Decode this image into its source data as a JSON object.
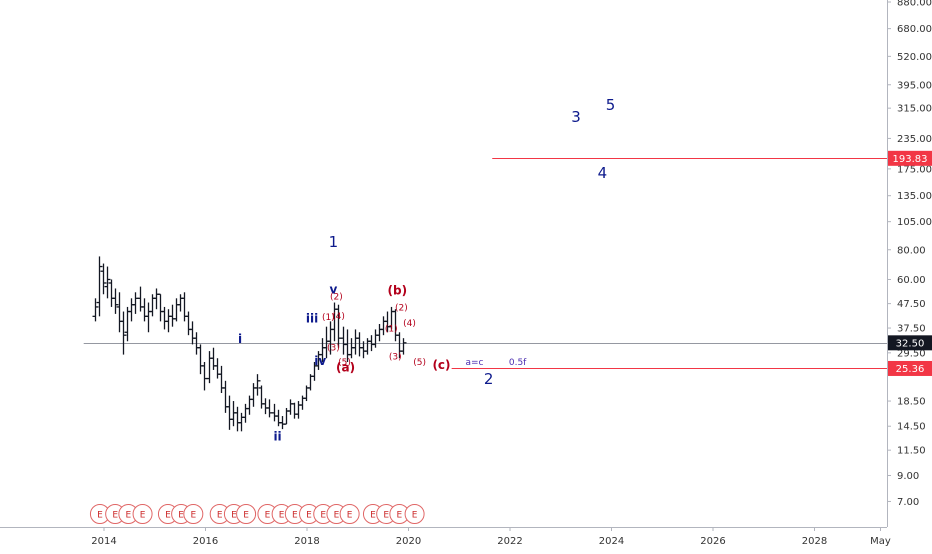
{
  "chart_data": {
    "type": "ohlc",
    "y_scale": "log",
    "ylim": [
      6.2,
      880
    ],
    "xlim": [
      2013.6,
      2029.3
    ],
    "y_tick_labels": [
      "880.00",
      "680.00",
      "520.00",
      "395.00",
      "315.00",
      "235.00",
      "175.00",
      "135.00",
      "105.00",
      "80.00",
      "60.00",
      "47.50",
      "37.50",
      "29.50",
      "25.50",
      "18.50",
      "14.50",
      "11.50",
      "9.00",
      "7.00"
    ],
    "x_tick_labels": [
      {
        "label": "2014",
        "x": 2014
      },
      {
        "label": "2016",
        "x": 2016
      },
      {
        "label": "2018",
        "x": 2018
      },
      {
        "label": "2020",
        "x": 2020
      },
      {
        "label": "2022",
        "x": 2022
      },
      {
        "label": "2024",
        "x": 2024
      },
      {
        "label": "2026",
        "x": 2026
      },
      {
        "label": "2028",
        "x": 2028
      },
      {
        "label": "May",
        "x": 2029.3
      }
    ],
    "price_labels": [
      {
        "text": "193.83",
        "price": 193.83,
        "color": "#f23645",
        "line_from": 2021.65
      },
      {
        "text": "32.50",
        "price": 32.5,
        "color": "#131722",
        "line_from": 2013.6
      },
      {
        "text": "25.36",
        "price": 25.36,
        "color": "#f23645",
        "line_from": 2020.85
      }
    ],
    "bars": [
      {
        "x": 2013.82,
        "h": 50,
        "l": 40,
        "o": 42,
        "c": 46
      },
      {
        "x": 2013.9,
        "h": 75,
        "l": 42,
        "o": 48,
        "c": 68
      },
      {
        "x": 2013.98,
        "h": 70,
        "l": 52,
        "o": 65,
        "c": 58
      },
      {
        "x": 2014.06,
        "h": 68,
        "l": 50,
        "o": 56,
        "c": 60
      },
      {
        "x": 2014.14,
        "h": 60,
        "l": 46,
        "o": 58,
        "c": 50
      },
      {
        "x": 2014.22,
        "h": 55,
        "l": 43,
        "o": 50,
        "c": 47
      },
      {
        "x": 2014.3,
        "h": 53,
        "l": 36,
        "o": 46,
        "c": 40
      },
      {
        "x": 2014.38,
        "h": 44,
        "l": 29,
        "o": 40,
        "c": 35
      },
      {
        "x": 2014.46,
        "h": 46,
        "l": 33,
        "o": 36,
        "c": 44
      },
      {
        "x": 2014.54,
        "h": 50,
        "l": 40,
        "o": 44,
        "c": 47
      },
      {
        "x": 2014.62,
        "h": 53,
        "l": 43,
        "o": 47,
        "c": 50
      },
      {
        "x": 2014.7,
        "h": 56,
        "l": 44,
        "o": 50,
        "c": 46
      },
      {
        "x": 2014.78,
        "h": 50,
        "l": 40,
        "o": 46,
        "c": 42
      },
      {
        "x": 2014.86,
        "h": 48,
        "l": 36,
        "o": 42,
        "c": 44
      },
      {
        "x": 2014.94,
        "h": 52,
        "l": 42,
        "o": 44,
        "c": 50
      },
      {
        "x": 2015.02,
        "h": 55,
        "l": 45,
        "o": 50,
        "c": 52
      },
      {
        "x": 2015.1,
        "h": 52,
        "l": 40,
        "o": 52,
        "c": 44
      },
      {
        "x": 2015.18,
        "h": 46,
        "l": 37,
        "o": 44,
        "c": 40
      },
      {
        "x": 2015.26,
        "h": 45,
        "l": 36,
        "o": 40,
        "c": 42
      },
      {
        "x": 2015.34,
        "h": 47,
        "l": 38,
        "o": 42,
        "c": 41
      },
      {
        "x": 2015.42,
        "h": 50,
        "l": 40,
        "o": 41,
        "c": 47
      },
      {
        "x": 2015.5,
        "h": 52,
        "l": 44,
        "o": 47,
        "c": 50
      },
      {
        "x": 2015.58,
        "h": 53,
        "l": 40,
        "o": 50,
        "c": 42
      },
      {
        "x": 2015.66,
        "h": 44,
        "l": 35,
        "o": 42,
        "c": 37
      },
      {
        "x": 2015.74,
        "h": 40,
        "l": 32,
        "o": 37,
        "c": 34
      },
      {
        "x": 2015.82,
        "h": 36,
        "l": 29,
        "o": 34,
        "c": 31
      },
      {
        "x": 2015.9,
        "h": 32,
        "l": 24,
        "o": 31,
        "c": 26
      },
      {
        "x": 2015.98,
        "h": 27,
        "l": 20.5,
        "o": 26,
        "c": 23
      },
      {
        "x": 2016.06,
        "h": 30,
        "l": 22,
        "o": 23,
        "c": 28
      },
      {
        "x": 2016.14,
        "h": 31,
        "l": 25,
        "o": 28,
        "c": 26
      },
      {
        "x": 2016.22,
        "h": 28,
        "l": 23,
        "o": 26,
        "c": 24
      },
      {
        "x": 2016.3,
        "h": 26,
        "l": 20,
        "o": 24,
        "c": 21
      },
      {
        "x": 2016.38,
        "h": 22.5,
        "l": 16.5,
        "o": 21,
        "c": 17.5
      },
      {
        "x": 2016.46,
        "h": 19.5,
        "l": 14,
        "o": 17.5,
        "c": 15.5
      },
      {
        "x": 2016.54,
        "h": 18.5,
        "l": 14.5,
        "o": 15.5,
        "c": 16.5
      },
      {
        "x": 2016.62,
        "h": 17.5,
        "l": 13.8,
        "o": 16.5,
        "c": 15
      },
      {
        "x": 2016.7,
        "h": 16.5,
        "l": 13.8,
        "o": 15,
        "c": 15.8
      },
      {
        "x": 2016.78,
        "h": 18,
        "l": 15,
        "o": 15.8,
        "c": 17.2
      },
      {
        "x": 2016.86,
        "h": 19.5,
        "l": 16.2,
        "o": 17.2,
        "c": 18.8
      },
      {
        "x": 2016.94,
        "h": 22,
        "l": 17.5,
        "o": 18.8,
        "c": 21
      },
      {
        "x": 2017.02,
        "h": 24,
        "l": 19.5,
        "o": 21,
        "c": 22.5
      },
      {
        "x": 2017.1,
        "h": 21.5,
        "l": 17.2,
        "o": 21,
        "c": 18
      },
      {
        "x": 2017.18,
        "h": 19,
        "l": 16.3,
        "o": 18,
        "c": 17.3
      },
      {
        "x": 2017.26,
        "h": 18.8,
        "l": 15.8,
        "o": 17.3,
        "c": 16.5
      },
      {
        "x": 2017.34,
        "h": 18,
        "l": 15.2,
        "o": 16.5,
        "c": 16
      },
      {
        "x": 2017.42,
        "h": 17,
        "l": 14.5,
        "o": 16,
        "c": 15
      },
      {
        "x": 2017.5,
        "h": 16,
        "l": 14.1,
        "o": 15,
        "c": 14.8
      },
      {
        "x": 2017.58,
        "h": 17.3,
        "l": 14.8,
        "o": 14.8,
        "c": 16.8
      },
      {
        "x": 2017.66,
        "h": 18.8,
        "l": 16.2,
        "o": 16.8,
        "c": 18
      },
      {
        "x": 2017.74,
        "h": 18.2,
        "l": 15.6,
        "o": 18,
        "c": 16.3
      },
      {
        "x": 2017.82,
        "h": 18.5,
        "l": 15.6,
        "o": 16.3,
        "c": 17.8
      },
      {
        "x": 2017.9,
        "h": 19.5,
        "l": 17,
        "o": 17.8,
        "c": 19
      },
      {
        "x": 2017.98,
        "h": 21.5,
        "l": 18.5,
        "o": 19,
        "c": 21
      },
      {
        "x": 2018.06,
        "h": 24,
        "l": 20.5,
        "o": 21,
        "c": 23.5
      },
      {
        "x": 2018.14,
        "h": 27,
        "l": 22.5,
        "o": 23.5,
        "c": 26
      },
      {
        "x": 2018.22,
        "h": 30,
        "l": 25,
        "o": 26,
        "c": 29
      },
      {
        "x": 2018.3,
        "h": 34,
        "l": 27,
        "o": 29,
        "c": 31
      },
      {
        "x": 2018.38,
        "h": 38,
        "l": 28,
        "o": 31,
        "c": 33
      },
      {
        "x": 2018.46,
        "h": 40,
        "l": 29,
        "o": 33,
        "c": 37
      },
      {
        "x": 2018.54,
        "h": 48,
        "l": 33,
        "o": 37,
        "c": 45
      },
      {
        "x": 2018.62,
        "h": 47,
        "l": 31,
        "o": 45,
        "c": 34
      },
      {
        "x": 2018.7,
        "h": 38,
        "l": 29,
        "o": 34,
        "c": 32
      },
      {
        "x": 2018.78,
        "h": 37,
        "l": 27,
        "o": 32,
        "c": 29
      },
      {
        "x": 2018.86,
        "h": 34,
        "l": 28,
        "o": 29,
        "c": 31
      },
      {
        "x": 2018.94,
        "h": 37,
        "l": 29,
        "o": 31,
        "c": 34
      },
      {
        "x": 2019.02,
        "h": 36,
        "l": 28.5,
        "o": 34,
        "c": 31
      },
      {
        "x": 2019.1,
        "h": 33,
        "l": 28,
        "o": 31,
        "c": 30
      },
      {
        "x": 2019.18,
        "h": 34,
        "l": 29,
        "o": 30,
        "c": 33
      },
      {
        "x": 2019.26,
        "h": 35,
        "l": 30,
        "o": 33,
        "c": 32
      },
      {
        "x": 2019.34,
        "h": 37,
        "l": 31,
        "o": 32,
        "c": 35
      },
      {
        "x": 2019.42,
        "h": 39,
        "l": 33,
        "o": 35,
        "c": 37
      },
      {
        "x": 2019.5,
        "h": 42,
        "l": 35,
        "o": 37,
        "c": 40
      },
      {
        "x": 2019.58,
        "h": 44,
        "l": 36,
        "o": 40,
        "c": 38
      },
      {
        "x": 2019.66,
        "h": 46,
        "l": 37,
        "o": 38,
        "c": 44
      },
      {
        "x": 2019.74,
        "h": 45,
        "l": 33,
        "o": 44,
        "c": 35
      },
      {
        "x": 2019.82,
        "h": 36,
        "l": 28,
        "o": 35,
        "c": 30
      },
      {
        "x": 2019.9,
        "h": 34,
        "l": 29,
        "o": 30,
        "c": 32.5
      }
    ],
    "annotations": [
      {
        "text": "1",
        "x": 2018.52,
        "price": 82,
        "style": "major"
      },
      {
        "text": "2",
        "x": 2021.58,
        "price": 21.8,
        "style": "major"
      },
      {
        "text": "3",
        "x": 2023.3,
        "price": 275,
        "style": "major"
      },
      {
        "text": "4",
        "x": 2023.82,
        "price": 160,
        "style": "major"
      },
      {
        "text": "5",
        "x": 2023.98,
        "price": 310,
        "style": "major"
      },
      {
        "text": "i",
        "x": 2016.68,
        "price": 32.5,
        "style": "minor"
      },
      {
        "text": "ii",
        "x": 2017.42,
        "price": 12.6,
        "style": "minor"
      },
      {
        "text": "iii",
        "x": 2018.1,
        "price": 39.5,
        "style": "minor"
      },
      {
        "text": "iv",
        "x": 2018.26,
        "price": 26.2,
        "style": "minor"
      },
      {
        "text": "v",
        "x": 2018.52,
        "price": 52.5,
        "style": "minor"
      },
      {
        "text": "(b)",
        "x": 2019.78,
        "price": 52,
        "style": "red"
      },
      {
        "text": "(a)",
        "x": 2018.76,
        "price": 24.6,
        "style": "red"
      },
      {
        "text": "(c)",
        "x": 2020.65,
        "price": 25.2,
        "style": "red"
      },
      {
        "text": "(2)",
        "x": 2018.58,
        "price": 49.5,
        "style": "red-small"
      },
      {
        "text": "(1)",
        "x": 2018.42,
        "price": 40.5,
        "style": "red-small"
      },
      {
        "text": "(4)",
        "x": 2018.62,
        "price": 41,
        "style": "red-small"
      },
      {
        "text": "(3)",
        "x": 2018.52,
        "price": 30.2,
        "style": "red-small"
      },
      {
        "text": "(5)",
        "x": 2018.74,
        "price": 26.2,
        "style": "red-small"
      },
      {
        "text": "(2)",
        "x": 2019.86,
        "price": 44.5,
        "style": "red-small"
      },
      {
        "text": "(1)",
        "x": 2019.66,
        "price": 36.2,
        "style": "red-small"
      },
      {
        "text": "(4)",
        "x": 2020.02,
        "price": 38.2,
        "style": "red-small"
      },
      {
        "text": "(3)",
        "x": 2019.74,
        "price": 27.6,
        "style": "red-small"
      },
      {
        "text": "(5)",
        "x": 2020.22,
        "price": 26.2,
        "style": "red-small"
      },
      {
        "text": "a=c",
        "x": 2021.3,
        "price": 26.2,
        "style": "note"
      },
      {
        "text": "0.5f",
        "x": 2022.15,
        "price": 26.2,
        "style": "note"
      }
    ],
    "earnings_marks": [
      2013.92,
      2014.22,
      2014.48,
      2014.76,
      2015.26,
      2015.52,
      2015.76,
      2016.28,
      2016.56,
      2016.8,
      2017.22,
      2017.5,
      2017.76,
      2018.04,
      2018.32,
      2018.58,
      2018.84,
      2019.3,
      2019.56,
      2019.82,
      2020.12
    ],
    "earnings_label": "E"
  }
}
